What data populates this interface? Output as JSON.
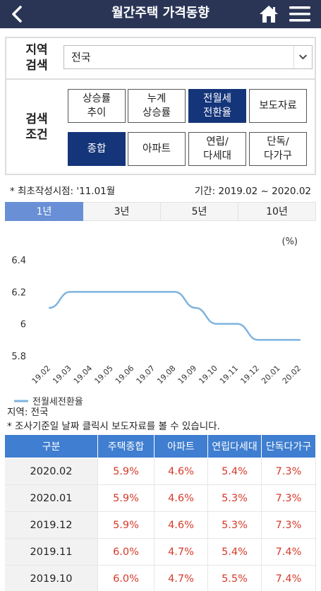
{
  "header": {
    "title": "월간주택 가격동향",
    "icons": [
      "chevron-left-icon",
      "home-icon",
      "hamburger-menu-icon"
    ],
    "color": "#2a3556"
  },
  "search": {
    "region_label_1": "지역",
    "region_label_2": "검색",
    "region_value": "전국",
    "condition_label_1": "검색",
    "condition_label_2": "조건",
    "condition_buttons": [
      {
        "label": "상승률\n추이",
        "active": false
      },
      {
        "label": "누계\n상승률",
        "active": false
      },
      {
        "label": "전월세\n전환율",
        "active": true
      },
      {
        "label": "보도자료",
        "active": false
      }
    ],
    "type_buttons": [
      {
        "label": "종합",
        "active": true
      },
      {
        "label": "아파트",
        "active": false
      },
      {
        "label": "연립/\n다세대",
        "active": false
      },
      {
        "label": "단독/\n다가구",
        "active": false
      }
    ],
    "accent": "#15357a"
  },
  "notes": {
    "first_created": "* 최초작성시점: '11.01월",
    "period": "기간: 2019.02 ~ 2020.02",
    "region": "지역: 전국",
    "hint": "* 조사기준일 날짜 클릭시 보도자료를 볼 수 있습니다."
  },
  "tabs": [
    {
      "label": "1년",
      "active": true
    },
    {
      "label": "3년",
      "active": false
    },
    {
      "label": "5년",
      "active": false
    },
    {
      "label": "10년",
      "active": false
    }
  ],
  "chart_data": {
    "type": "line",
    "x": [
      "19.02",
      "19.03",
      "19.04",
      "19.05",
      "19.06",
      "19.07",
      "19.08",
      "19.09",
      "19.10",
      "19.11",
      "19.12",
      "20.01",
      "20.02"
    ],
    "series": [
      {
        "name": "전월세전환율",
        "values": [
          6.1,
          6.2,
          6.2,
          6.2,
          6.2,
          6.2,
          6.2,
          6.1,
          6.0,
          6.0,
          5.9,
          5.9,
          5.9
        ],
        "color": "#7fb3e0"
      }
    ],
    "ylim": [
      5.8,
      6.4
    ],
    "yticks": [
      "6.4",
      "6.2",
      "6",
      "5.8"
    ],
    "unit_label": "(%)",
    "legend_position": "bottom-left",
    "grid": false
  },
  "table": {
    "headers": [
      "구분",
      "주택종합",
      "아파트",
      "연립다세대",
      "단독다가구"
    ],
    "rows": [
      [
        "2020.02",
        "5.9%",
        "4.6%",
        "5.4%",
        "7.3%"
      ],
      [
        "2020.01",
        "5.9%",
        "4.6%",
        "5.3%",
        "7.3%"
      ],
      [
        "2019.12",
        "5.9%",
        "4.6%",
        "5.3%",
        "7.3%"
      ],
      [
        "2019.11",
        "6.0%",
        "4.7%",
        "5.4%",
        "7.4%"
      ],
      [
        "2019.10",
        "6.0%",
        "4.7%",
        "5.5%",
        "7.4%"
      ]
    ],
    "header_color": "#3f7ed0",
    "value_color": "#d63a2a"
  }
}
